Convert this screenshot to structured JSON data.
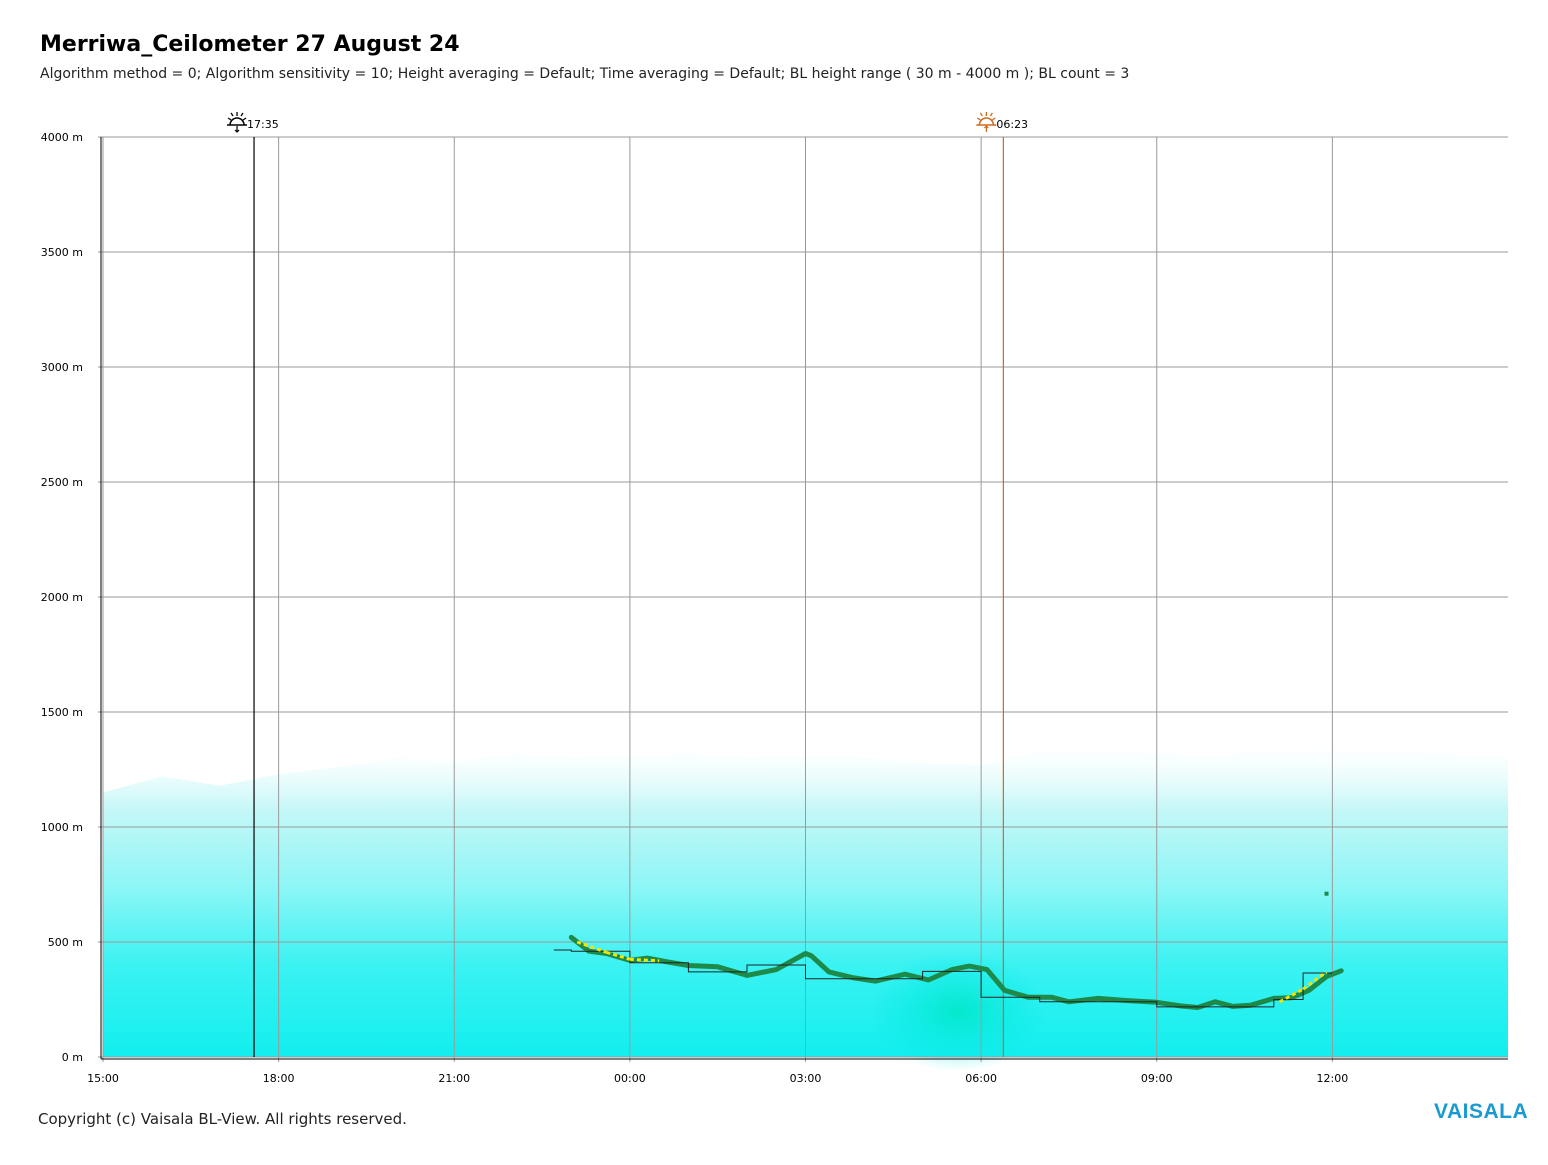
{
  "title": "Merriwa_Ceilometer 27 August 24",
  "subtitle": "Algorithm method = 0; Algorithm sensitivity = 10; Height averaging = Default; Time averaging = Default; BL height range ( 30 m - 4000 m ); BL count = 3",
  "footer": {
    "copyright": "Copyright (c) Vaisala BL-View. All rights reserved.",
    "brand": "VAISALA"
  },
  "colors": {
    "grid": "#9a9a9a",
    "bl_primary": "#1d8a4a",
    "bl_yellow": "#f2e600",
    "sunset_line": "#000000",
    "sunrise_line": "#d2691e",
    "backscatter": "#00f0f0"
  },
  "chart_data": {
    "type": "line",
    "title": "",
    "xlabel": "",
    "ylabel": "",
    "x_unit": "hours since 15:00",
    "xlim": [
      0,
      24
    ],
    "ylim": [
      0,
      4000
    ],
    "grid": true,
    "x_ticks": [
      {
        "x": 0,
        "label": "15:00"
      },
      {
        "x": 3,
        "label": "18:00"
      },
      {
        "x": 6,
        "label": "21:00"
      },
      {
        "x": 9,
        "label": "00:00"
      },
      {
        "x": 12,
        "label": "03:00"
      },
      {
        "x": 15,
        "label": "06:00"
      },
      {
        "x": 18,
        "label": "09:00"
      },
      {
        "x": 21,
        "label": "12:00"
      }
    ],
    "y_ticks": [
      {
        "y": 0,
        "label": "0 m"
      },
      {
        "y": 500,
        "label": "500 m"
      },
      {
        "y": 1000,
        "label": "1000 m"
      },
      {
        "y": 1500,
        "label": "1500 m"
      },
      {
        "y": 2000,
        "label": "2000 m"
      },
      {
        "y": 2500,
        "label": "2500 m"
      },
      {
        "y": 3000,
        "label": "3000 m"
      },
      {
        "y": 3500,
        "label": "3500 m"
      },
      {
        "y": 4000,
        "label": "4000 m"
      }
    ],
    "markers": [
      {
        "name": "sunset",
        "label": "17:35",
        "x": 2.58,
        "icon": "sunset-icon"
      },
      {
        "name": "sunrise",
        "label": "06:23",
        "x": 15.38,
        "icon": "sunrise-icon"
      }
    ],
    "backscatter_top": [
      {
        "x": 0,
        "y": 1150
      },
      {
        "x": 1,
        "y": 1220
      },
      {
        "x": 2,
        "y": 1180
      },
      {
        "x": 3,
        "y": 1230
      },
      {
        "x": 4,
        "y": 1260
      },
      {
        "x": 5,
        "y": 1300
      },
      {
        "x": 6,
        "y": 1280
      },
      {
        "x": 7,
        "y": 1320
      },
      {
        "x": 8,
        "y": 1300
      },
      {
        "x": 9,
        "y": 1310
      },
      {
        "x": 10,
        "y": 1320
      },
      {
        "x": 11,
        "y": 1300
      },
      {
        "x": 12,
        "y": 1310
      },
      {
        "x": 13,
        "y": 1300
      },
      {
        "x": 14,
        "y": 1280
      },
      {
        "x": 15,
        "y": 1270
      },
      {
        "x": 16,
        "y": 1330
      },
      {
        "x": 17,
        "y": 1340
      },
      {
        "x": 18,
        "y": 1320
      },
      {
        "x": 19,
        "y": 1310
      },
      {
        "x": 20,
        "y": 1340
      },
      {
        "x": 21,
        "y": 1350
      },
      {
        "x": 22,
        "y": 1330
      },
      {
        "x": 23,
        "y": 1320
      },
      {
        "x": 24,
        "y": 1300
      }
    ],
    "series": [
      {
        "style": "thick-line",
        "points": [
          {
            "x": 8.0,
            "y": 520
          },
          {
            "x": 8.3,
            "y": 460
          },
          {
            "x": 8.6,
            "y": 450
          },
          {
            "x": 9.0,
            "y": 420
          },
          {
            "x": 9.3,
            "y": 430
          },
          {
            "x": 9.6,
            "y": 415
          },
          {
            "x": 10.0,
            "y": 398
          },
          {
            "x": 10.5,
            "y": 392
          },
          {
            "x": 11.0,
            "y": 355
          },
          {
            "x": 11.5,
            "y": 380
          },
          {
            "x": 12.0,
            "y": 450
          },
          {
            "x": 12.1,
            "y": 440
          },
          {
            "x": 12.4,
            "y": 370
          },
          {
            "x": 12.8,
            "y": 345
          },
          {
            "x": 13.2,
            "y": 330
          },
          {
            "x": 13.7,
            "y": 360
          },
          {
            "x": 14.1,
            "y": 335
          },
          {
            "x": 14.5,
            "y": 380
          },
          {
            "x": 14.8,
            "y": 395
          },
          {
            "x": 15.1,
            "y": 380
          },
          {
            "x": 15.4,
            "y": 290
          },
          {
            "x": 15.8,
            "y": 260
          },
          {
            "x": 16.2,
            "y": 260
          },
          {
            "x": 16.5,
            "y": 240
          },
          {
            "x": 17.0,
            "y": 255
          },
          {
            "x": 17.5,
            "y": 245
          },
          {
            "x": 18.0,
            "y": 238
          },
          {
            "x": 18.4,
            "y": 222
          },
          {
            "x": 18.7,
            "y": 215
          },
          {
            "x": 19.0,
            "y": 240
          },
          {
            "x": 19.3,
            "y": 220
          },
          {
            "x": 19.6,
            "y": 225
          },
          {
            "x": 20.0,
            "y": 255
          },
          {
            "x": 20.3,
            "y": 258
          },
          {
            "x": 20.6,
            "y": 290
          },
          {
            "x": 20.9,
            "y": 350
          },
          {
            "x": 21.15,
            "y": 375
          }
        ]
      },
      {
        "style": "thin-step",
        "points": [
          {
            "x": 7.7,
            "y": 465
          },
          {
            "x": 8.0,
            "y": 465
          },
          {
            "x": 8.0,
            "y": 460
          },
          {
            "x": 9.0,
            "y": 460
          },
          {
            "x": 9.0,
            "y": 410
          },
          {
            "x": 10.0,
            "y": 410
          },
          {
            "x": 10.0,
            "y": 370
          },
          {
            "x": 11.0,
            "y": 370
          },
          {
            "x": 11.0,
            "y": 400
          },
          {
            "x": 12.0,
            "y": 400
          },
          {
            "x": 12.0,
            "y": 340
          },
          {
            "x": 14.0,
            "y": 340
          },
          {
            "x": 14.0,
            "y": 372
          },
          {
            "x": 15.0,
            "y": 372
          },
          {
            "x": 15.0,
            "y": 260
          },
          {
            "x": 16.0,
            "y": 260
          },
          {
            "x": 16.0,
            "y": 240
          },
          {
            "x": 18.0,
            "y": 240
          },
          {
            "x": 18.0,
            "y": 218
          },
          {
            "x": 20.0,
            "y": 218
          },
          {
            "x": 20.0,
            "y": 250
          },
          {
            "x": 20.5,
            "y": 250
          },
          {
            "x": 20.5,
            "y": 365
          },
          {
            "x": 21.0,
            "y": 365
          }
        ]
      }
    ],
    "quality_segments": [
      {
        "x0": 8.1,
        "y0": 500,
        "x1": 8.6,
        "y1": 455
      },
      {
        "x0": 8.6,
        "y0": 455,
        "x1": 9.0,
        "y1": 425
      },
      {
        "x0": 9.0,
        "y0": 425,
        "x1": 9.5,
        "y1": 418
      },
      {
        "x0": 20.1,
        "y0": 240,
        "x1": 20.5,
        "y1": 295
      },
      {
        "x0": 20.5,
        "y0": 295,
        "x1": 20.9,
        "y1": 370
      }
    ],
    "outlier_points": [
      {
        "x": 20.9,
        "y": 710
      }
    ]
  }
}
